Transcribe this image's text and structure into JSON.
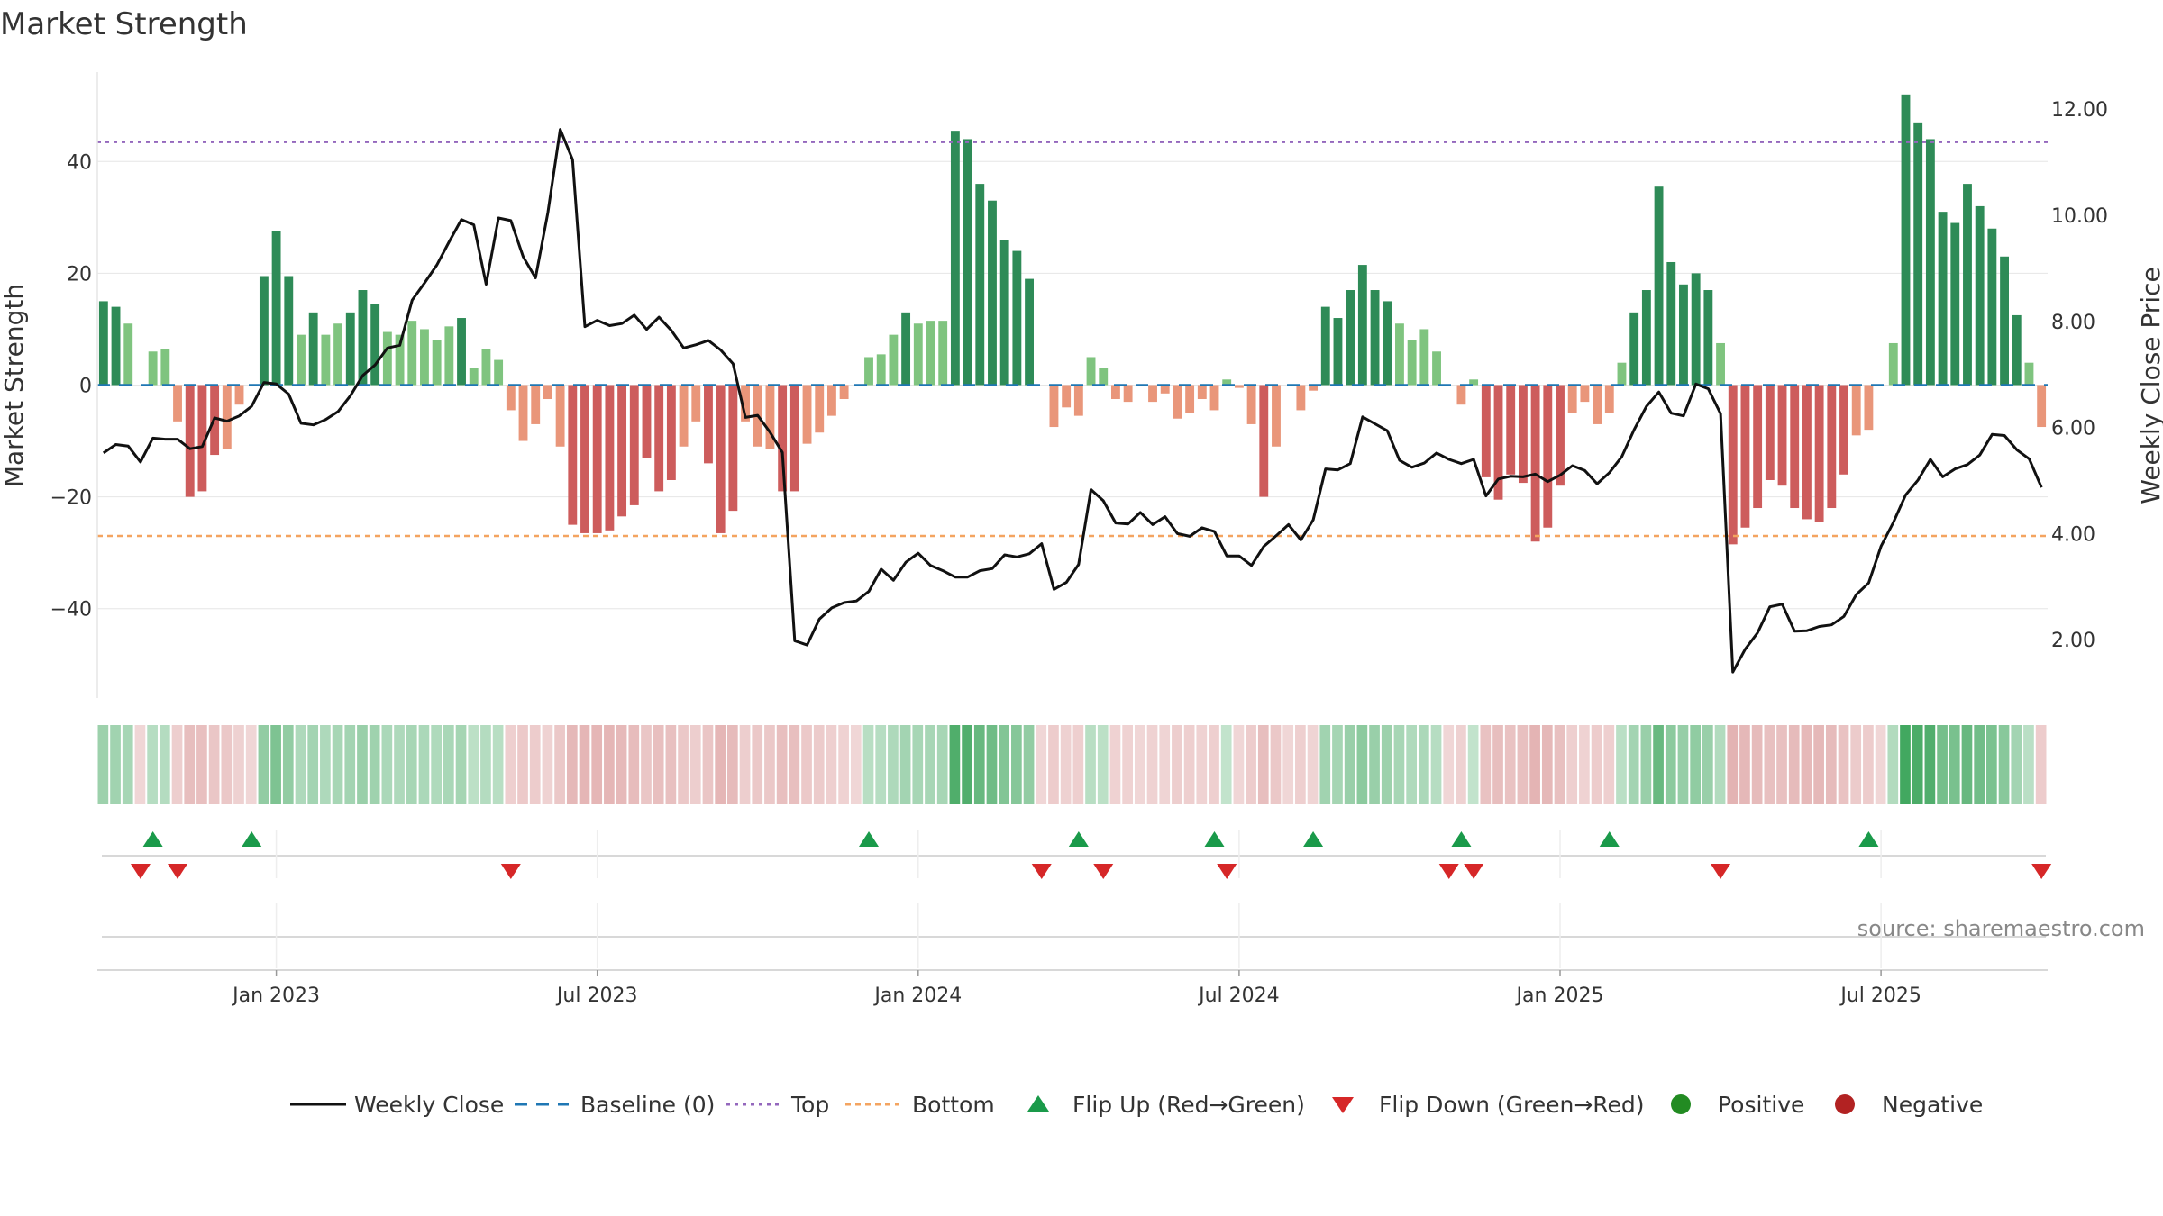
{
  "chart_data": {
    "type": "bar",
    "title": "Market Strength",
    "ylabel": "Market Strength",
    "y2label": "Weekly Close Price",
    "ylim": [
      -56,
      56
    ],
    "y2lim": [
      0.9,
      12.7
    ],
    "yticks": [
      "40",
      "20",
      "0",
      "−20",
      "−40"
    ],
    "yticks_values": [
      40,
      20,
      0,
      -20,
      -40
    ],
    "y2ticks": [
      "12.00",
      "10.00",
      "8.00",
      "6.00",
      "4.00",
      "2.00"
    ],
    "y2ticks_values": [
      12,
      10,
      8,
      6,
      4,
      2
    ],
    "xticks": [
      "Jan 2023",
      "Jul 2023",
      "Jan 2024",
      "Jul 2024",
      "Jan 2025",
      "Jul 2025"
    ],
    "xticks_index": [
      14.5,
      40.5,
      66.5,
      92.5,
      118.5,
      144.5
    ],
    "top_threshold": 43.5,
    "bottom_threshold": -27,
    "baseline": 0,
    "source": "source: sharemaestro.com",
    "strength": [
      15,
      14,
      11,
      0,
      6,
      6.5,
      -6.5,
      -20,
      -19,
      -12.5,
      -11.5,
      -3.5,
      0,
      19.5,
      27.5,
      19.5,
      9,
      13,
      9,
      11,
      13,
      17,
      14.5,
      9.5,
      9,
      11.5,
      10,
      8,
      10.5,
      12,
      3,
      6.5,
      4.5,
      -4.5,
      -10,
      -7,
      -2.5,
      -11,
      -25,
      -26.5,
      -26.5,
      -26,
      -23.5,
      -21.5,
      -13,
      -19,
      -17,
      -11,
      -6.5,
      -14,
      -26.5,
      -22.5,
      -6.5,
      -11,
      -11.5,
      -19,
      -19,
      -10.5,
      -8.5,
      -5.5,
      -2.5,
      0,
      5,
      5.5,
      9,
      13,
      11,
      11.5,
      11.5,
      45.5,
      44,
      36,
      33,
      26,
      24,
      19,
      0,
      -7.5,
      -4,
      -5.5,
      5,
      3,
      -2.5,
      -3,
      0,
      -3,
      -1.5,
      -6,
      -5,
      -2.5,
      -4.5,
      1,
      -0.5,
      -7,
      -20,
      -11,
      0,
      -4.5,
      -1,
      14,
      12,
      17,
      21.5,
      17,
      15,
      11,
      8,
      10,
      6,
      0,
      -3.5,
      1,
      -16.5,
      -20.5,
      -16,
      -17.5,
      -28,
      -25.5,
      -18,
      -5,
      -3,
      -7,
      -5,
      4,
      13,
      17,
      35.5,
      22,
      18,
      20,
      17,
      7.5,
      -28.5,
      -25.5,
      -22,
      -17,
      -18,
      -22,
      -24,
      -24.5,
      -22,
      -16,
      -9,
      -8,
      0,
      7.5,
      52,
      47,
      44,
      31,
      29,
      36,
      32,
      28,
      23,
      12.5,
      4,
      -7.5
    ],
    "weekly_close": [
      5.52,
      5.68,
      5.65,
      5.35,
      5.8,
      5.78,
      5.78,
      5.6,
      5.64,
      6.18,
      6.12,
      6.22,
      6.4,
      6.85,
      6.82,
      6.63,
      6.08,
      6.05,
      6.15,
      6.3,
      6.6,
      6.98,
      7.18,
      7.5,
      7.55,
      8.4,
      8.72,
      9.06,
      9.5,
      9.92,
      9.82,
      8.7,
      9.95,
      9.9,
      9.22,
      8.82,
      10.05,
      11.62,
      11.05,
      7.9,
      8.02,
      7.92,
      7.96,
      8.12,
      7.85,
      8.08,
      7.83,
      7.5,
      7.56,
      7.64,
      7.46,
      7.2,
      6.19,
      6.23,
      5.91,
      5.53,
      1.98,
      1.9,
      2.39,
      2.6,
      2.7,
      2.73,
      2.91,
      3.33,
      3.12,
      3.46,
      3.63,
      3.4,
      3.3,
      3.18,
      3.18,
      3.3,
      3.34,
      3.6,
      3.56,
      3.62,
      3.81,
      2.95,
      3.08,
      3.42,
      4.83,
      4.62,
      4.2,
      4.18,
      4.4,
      4.17,
      4.32,
      4.0,
      3.95,
      4.11,
      4.04,
      3.58,
      3.58,
      3.4,
      3.76,
      3.96,
      4.17,
      3.88,
      4.26,
      5.22,
      5.2,
      5.32,
      6.2,
      6.07,
      5.94,
      5.38,
      5.25,
      5.33,
      5.52,
      5.4,
      5.32,
      5.4,
      4.71,
      5.03,
      5.08,
      5.07,
      5.12,
      4.98,
      5.1,
      5.28,
      5.19,
      4.94,
      5.15,
      5.45,
      5.96,
      6.4,
      6.67,
      6.27,
      6.22,
      6.82,
      6.73,
      6.26,
      1.39,
      1.82,
      2.13,
      2.62,
      2.67,
      2.16,
      2.17,
      2.25,
      2.28,
      2.44,
      2.85,
      3.07,
      3.76,
      4.21,
      4.73,
      5.01,
      5.4,
      5.07,
      5.22,
      5.3,
      5.48,
      5.87,
      5.85,
      5.58,
      5.41,
      4.87
    ],
    "flip_up_index": [
      4,
      12,
      62,
      79,
      90,
      98,
      110,
      122,
      143
    ],
    "flip_down_index": [
      3,
      6,
      33,
      76,
      81,
      91,
      109,
      111,
      131,
      157
    ],
    "strip_cells": [
      0
    ],
    "legend": [
      "Weekly Close",
      "Baseline (0)",
      "Top",
      "Bottom",
      "Flip Up (Red→Green)",
      "Flip Down (Green→Red)",
      "Positive",
      "Negative"
    ],
    "colors": {
      "strong_pos": "#2e8b57",
      "weak_pos": "#7fc47f",
      "strong_neg": "#cd5c5c",
      "weak_neg": "#e9967a",
      "line": "#111111",
      "baseline": "#1f77b4",
      "top": "#9467bd",
      "bottom": "#f4a460",
      "flip_up": "#1a9a4a",
      "flip_down": "#d62728",
      "positive": "#228b22",
      "negative": "#b22222",
      "grid": "#e6e6e6"
    }
  }
}
